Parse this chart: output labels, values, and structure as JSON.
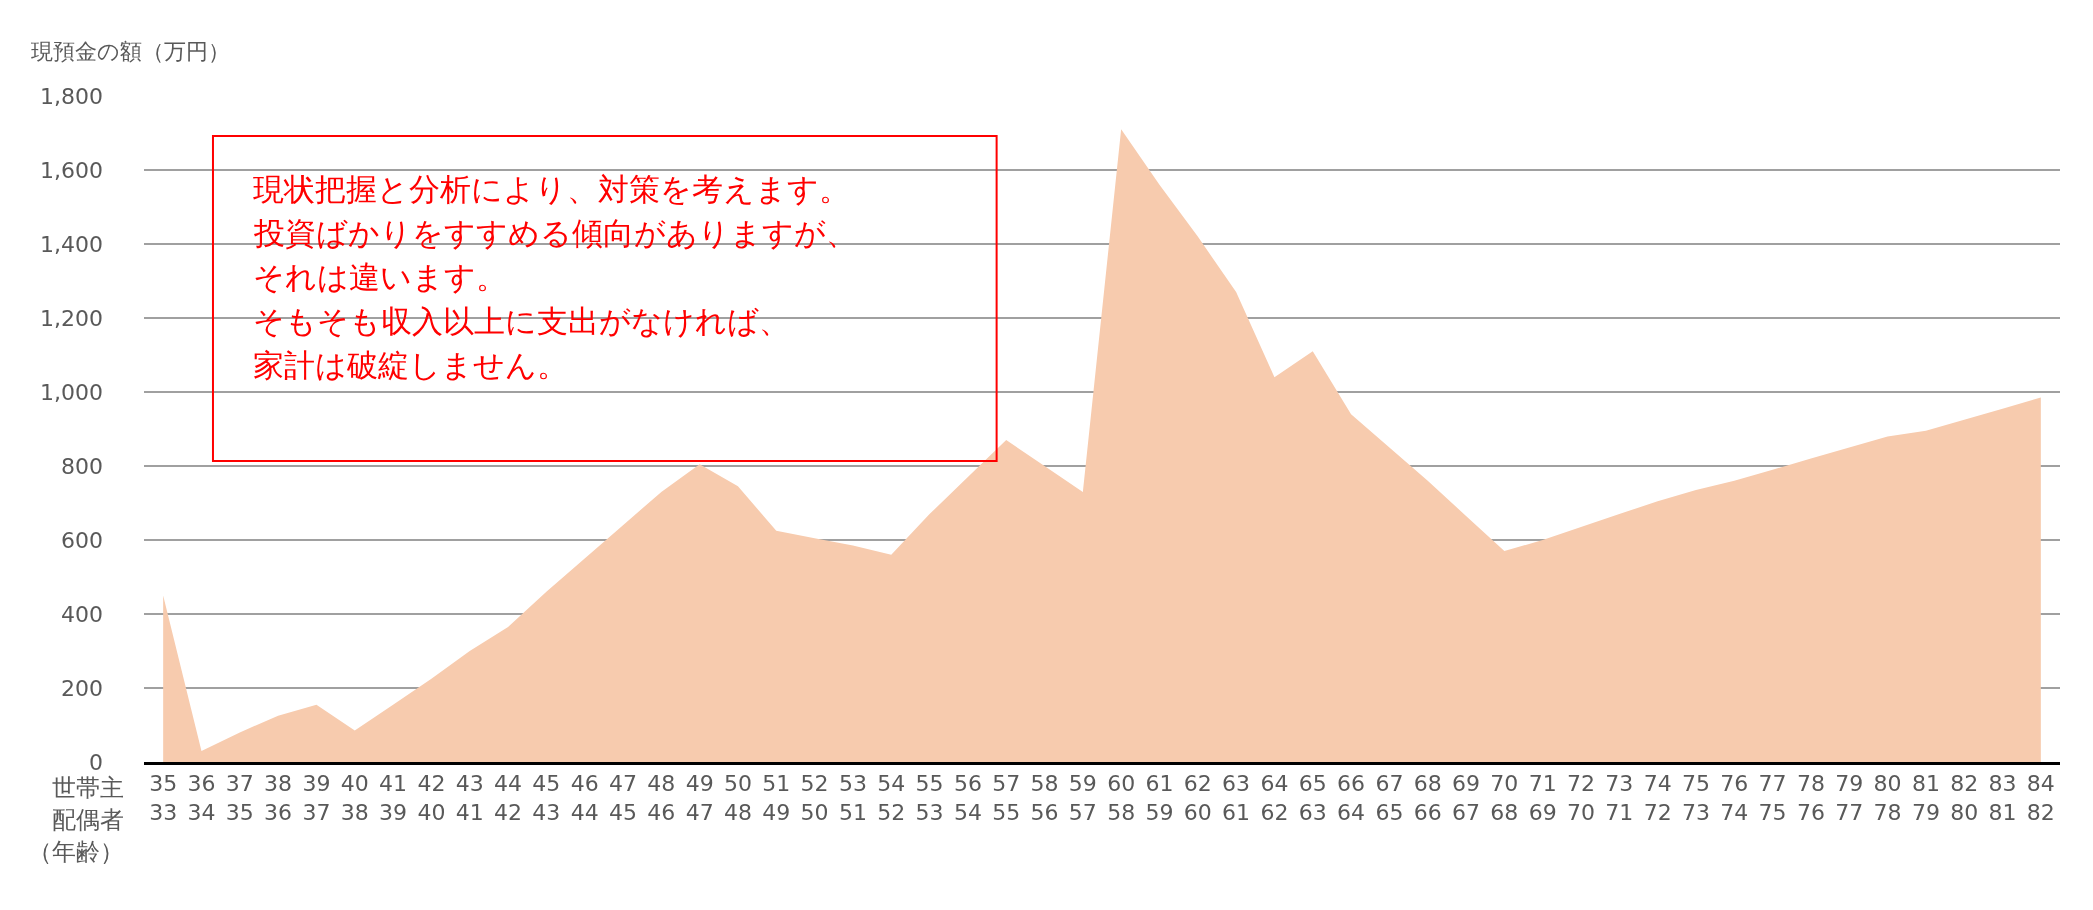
{
  "chart_data": {
    "type": "area",
    "ylabel": "現預金の額（万円）",
    "categories": [
      "35\n33",
      "36\n34",
      "37\n35",
      "38\n36",
      "39\n37",
      "40\n38",
      "41\n39",
      "42\n40",
      "43\n41",
      "44\n42",
      "45\n43",
      "46\n44",
      "47\n45",
      "48\n46",
      "49\n47",
      "50\n48",
      "51\n49",
      "52\n50",
      "53\n51",
      "54\n52",
      "55\n53",
      "56\n54",
      "57\n55",
      "58\n56",
      "59\n57",
      "60\n58",
      "61\n59",
      "62\n60",
      "63\n61",
      "64\n62",
      "65\n63",
      "66\n64",
      "67\n65",
      "68\n66",
      "69\n67",
      "70\n68",
      "71\n69",
      "72\n70",
      "73\n71",
      "74\n72",
      "75\n73",
      "76\n74",
      "77\n75",
      "78\n76",
      "79\n77",
      "80\n78",
      "81\n79",
      "82\n80",
      "83\n81",
      "84\n82"
    ],
    "series": [
      {
        "color": "#f7cbae",
        "values": [
          450,
          30,
          80,
          125,
          155,
          85,
          155,
          225,
          300,
          365,
          460,
          550,
          640,
          730,
          805,
          745,
          625,
          605,
          585,
          560,
          670,
          770,
          870,
          800,
          730,
          1710,
          1560,
          1420,
          1270,
          1040,
          1110,
          940,
          850,
          760,
          665,
          570,
          600,
          635,
          670,
          705,
          735,
          760,
          790,
          820,
          850,
          880,
          895,
          925,
          955,
          985
        ]
      }
    ],
    "ylim": [
      0,
      1800
    ],
    "yticks": [
      0,
      200,
      400,
      600,
      800,
      {
        "value": 1000,
        "label": "1,000"
      },
      {
        "value": 1200,
        "label": "1,200"
      },
      {
        "value": 1400,
        "label": "1,400"
      },
      {
        "value": 1600,
        "label": "1,600"
      },
      {
        "value": 1800,
        "label": "1,800"
      }
    ],
    "grid": "y",
    "annotations": [
      "現状把握と分析により、対策を考えます。",
      "投資ばかりをすすめる傾向がありますが、",
      "それは違います。",
      "そもそも収入以上に支出がなければ、",
      "家計は破綻しません。",
      "世帯主",
      "配偶者",
      "（年齢）"
    ]
  }
}
